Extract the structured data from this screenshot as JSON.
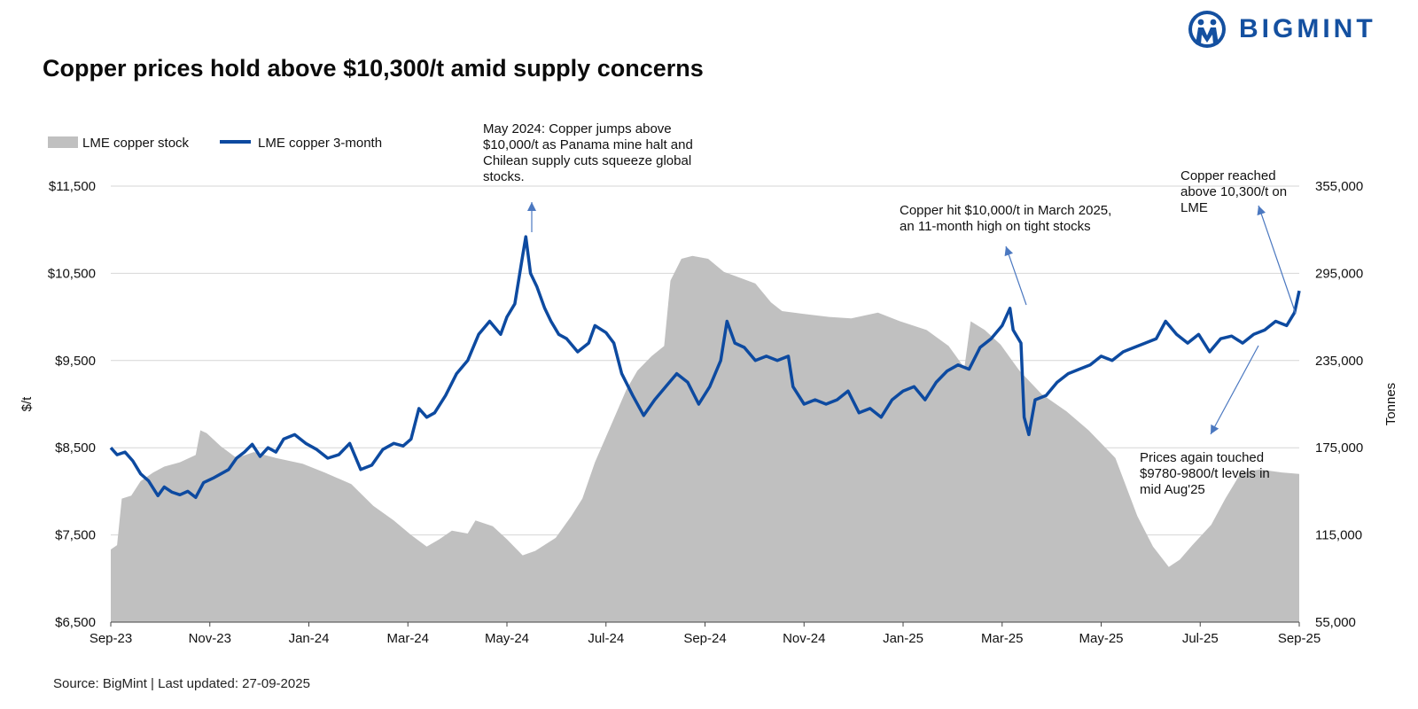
{
  "header": {
    "title": "Copper prices hold above $10,300/t amid supply concerns",
    "logo_text": "BIGMINT"
  },
  "footer": {
    "source": "Source: BigMint | Last updated: 27-09-2025"
  },
  "colors": {
    "price_line": "#0d4aa0",
    "stock_area": "#c0c0c0",
    "brand": "#1450a0"
  },
  "chart_data": {
    "type": "area+line",
    "ylabel": "$/t",
    "y2label": "Tonnes",
    "ylim": [
      6500,
      11500
    ],
    "y2lim": [
      55000,
      355000
    ],
    "y_ticks": [
      "$11,500",
      "$10,500",
      "$9,500",
      "$8,500",
      "$7,500",
      "$6,500"
    ],
    "y2_ticks": [
      "355,000",
      "295,000",
      "235,000",
      "175,000",
      "115,000",
      "55,000"
    ],
    "x_ticks": [
      "Sep-23",
      "Nov-23",
      "Jan-24",
      "Mar-24",
      "May-24",
      "Jul-24",
      "Sep-24",
      "Nov-24",
      "Jan-25",
      "Mar-25",
      "May-25",
      "Jul-25",
      "Sep-25"
    ],
    "grid": true,
    "legend": [
      "LME copper stock",
      "LME copper 3-month"
    ],
    "legend_position": "top-left",
    "series": [
      {
        "name": "LME copper stock",
        "type": "area",
        "axis": "right",
        "points": [
          [
            "2023-09-01",
            105000
          ],
          [
            "2023-09-05",
            108000
          ],
          [
            "2023-09-08",
            140000
          ],
          [
            "2023-09-14",
            142000
          ],
          [
            "2023-09-20",
            152000
          ],
          [
            "2023-09-28",
            158000
          ],
          [
            "2023-10-05",
            162000
          ],
          [
            "2023-10-15",
            165000
          ],
          [
            "2023-10-25",
            170000
          ],
          [
            "2023-10-28",
            187000
          ],
          [
            "2023-11-01",
            185000
          ],
          [
            "2023-11-10",
            176000
          ],
          [
            "2023-11-20",
            168000
          ],
          [
            "2023-12-01",
            172000
          ],
          [
            "2023-12-15",
            168000
          ],
          [
            "2024-01-01",
            164000
          ],
          [
            "2024-01-15",
            158000
          ],
          [
            "2024-02-01",
            150000
          ],
          [
            "2024-02-15",
            135000
          ],
          [
            "2024-02-28",
            125000
          ],
          [
            "2024-03-10",
            115000
          ],
          [
            "2024-03-20",
            107000
          ],
          [
            "2024-03-28",
            112000
          ],
          [
            "2024-04-05",
            118000
          ],
          [
            "2024-04-15",
            116000
          ],
          [
            "2024-04-20",
            125000
          ],
          [
            "2024-05-01",
            121000
          ],
          [
            "2024-05-10",
            112000
          ],
          [
            "2024-05-20",
            101000
          ],
          [
            "2024-05-28",
            104000
          ],
          [
            "2024-06-10",
            113000
          ],
          [
            "2024-06-20",
            128000
          ],
          [
            "2024-06-27",
            140000
          ],
          [
            "2024-07-05",
            165000
          ],
          [
            "2024-07-15",
            190000
          ],
          [
            "2024-07-25",
            215000
          ],
          [
            "2024-08-01",
            228000
          ],
          [
            "2024-08-10",
            238000
          ],
          [
            "2024-08-18",
            245000
          ],
          [
            "2024-08-22",
            290000
          ],
          [
            "2024-08-29",
            305000
          ],
          [
            "2024-09-05",
            307000
          ],
          [
            "2024-09-15",
            305000
          ],
          [
            "2024-09-25",
            296000
          ],
          [
            "2024-10-05",
            292000
          ],
          [
            "2024-10-15",
            288000
          ],
          [
            "2024-10-25",
            275000
          ],
          [
            "2024-11-01",
            269000
          ],
          [
            "2024-11-15",
            267000
          ],
          [
            "2024-12-01",
            265000
          ],
          [
            "2024-12-15",
            264000
          ],
          [
            "2025-01-01",
            268000
          ],
          [
            "2025-01-15",
            262000
          ],
          [
            "2025-02-01",
            256000
          ],
          [
            "2025-02-15",
            245000
          ],
          [
            "2025-02-25",
            230000
          ],
          [
            "2025-03-01",
            262000
          ],
          [
            "2025-03-10",
            256000
          ],
          [
            "2025-03-20",
            246000
          ],
          [
            "2025-04-01",
            228000
          ],
          [
            "2025-04-15",
            212000
          ],
          [
            "2025-05-01",
            200000
          ],
          [
            "2025-05-15",
            187000
          ],
          [
            "2025-06-01",
            168000
          ],
          [
            "2025-06-15",
            128000
          ],
          [
            "2025-06-25",
            107000
          ],
          [
            "2025-07-05",
            93000
          ],
          [
            "2025-07-12",
            98000
          ],
          [
            "2025-07-20",
            108000
          ],
          [
            "2025-08-01",
            122000
          ],
          [
            "2025-08-10",
            140000
          ],
          [
            "2025-08-20",
            158000
          ],
          [
            "2025-09-01",
            160000
          ],
          [
            "2025-09-15",
            158000
          ],
          [
            "2025-09-26",
            157000
          ]
        ]
      },
      {
        "name": "LME copper 3-month",
        "type": "line",
        "axis": "left",
        "points": [
          [
            "2023-09-01",
            8500
          ],
          [
            "2023-09-05",
            8420
          ],
          [
            "2023-09-10",
            8450
          ],
          [
            "2023-09-15",
            8350
          ],
          [
            "2023-09-20",
            8200
          ],
          [
            "2023-09-25",
            8120
          ],
          [
            "2023-10-01",
            7950
          ],
          [
            "2023-10-05",
            8050
          ],
          [
            "2023-10-10",
            7990
          ],
          [
            "2023-10-15",
            7960
          ],
          [
            "2023-10-20",
            8000
          ],
          [
            "2023-10-25",
            7930
          ],
          [
            "2023-10-30",
            8100
          ],
          [
            "2023-11-05",
            8150
          ],
          [
            "2023-11-10",
            8200
          ],
          [
            "2023-11-15",
            8250
          ],
          [
            "2023-11-20",
            8380
          ],
          [
            "2023-11-25",
            8450
          ],
          [
            "2023-11-30",
            8540
          ],
          [
            "2023-12-05",
            8400
          ],
          [
            "2023-12-10",
            8500
          ],
          [
            "2023-12-15",
            8450
          ],
          [
            "2023-12-20",
            8600
          ],
          [
            "2023-12-27",
            8650
          ],
          [
            "2024-01-03",
            8550
          ],
          [
            "2024-01-10",
            8480
          ],
          [
            "2024-01-17",
            8380
          ],
          [
            "2024-01-24",
            8420
          ],
          [
            "2024-01-31",
            8550
          ],
          [
            "2024-02-07",
            8250
          ],
          [
            "2024-02-14",
            8300
          ],
          [
            "2024-02-21",
            8480
          ],
          [
            "2024-02-28",
            8550
          ],
          [
            "2024-03-05",
            8520
          ],
          [
            "2024-03-10",
            8600
          ],
          [
            "2024-03-15",
            8950
          ],
          [
            "2024-03-20",
            8850
          ],
          [
            "2024-03-25",
            8900
          ],
          [
            "2024-04-01",
            9100
          ],
          [
            "2024-04-08",
            9350
          ],
          [
            "2024-04-15",
            9500
          ],
          [
            "2024-04-22",
            9800
          ],
          [
            "2024-04-29",
            9950
          ],
          [
            "2024-05-06",
            9800
          ],
          [
            "2024-05-10",
            10000
          ],
          [
            "2024-05-15",
            10150
          ],
          [
            "2024-05-20",
            10700
          ],
          [
            "2024-05-22",
            10920
          ],
          [
            "2024-05-25",
            10500
          ],
          [
            "2024-05-29",
            10350
          ],
          [
            "2024-06-03",
            10100
          ],
          [
            "2024-06-07",
            9950
          ],
          [
            "2024-06-12",
            9800
          ],
          [
            "2024-06-17",
            9750
          ],
          [
            "2024-06-24",
            9600
          ],
          [
            "2024-07-01",
            9700
          ],
          [
            "2024-07-05",
            9900
          ],
          [
            "2024-07-12",
            9820
          ],
          [
            "2024-07-17",
            9700
          ],
          [
            "2024-07-22",
            9350
          ],
          [
            "2024-07-29",
            9100
          ],
          [
            "2024-08-05",
            8870
          ],
          [
            "2024-08-12",
            9050
          ],
          [
            "2024-08-19",
            9200
          ],
          [
            "2024-08-26",
            9350
          ],
          [
            "2024-09-02",
            9250
          ],
          [
            "2024-09-09",
            9000
          ],
          [
            "2024-09-16",
            9200
          ],
          [
            "2024-09-23",
            9500
          ],
          [
            "2024-09-27",
            9950
          ],
          [
            "2024-10-02",
            9700
          ],
          [
            "2024-10-08",
            9650
          ],
          [
            "2024-10-15",
            9500
          ],
          [
            "2024-10-22",
            9550
          ],
          [
            "2024-10-29",
            9500
          ],
          [
            "2024-11-05",
            9550
          ],
          [
            "2024-11-08",
            9200
          ],
          [
            "2024-11-15",
            9000
          ],
          [
            "2024-11-22",
            9050
          ],
          [
            "2024-11-29",
            9000
          ],
          [
            "2024-12-06",
            9050
          ],
          [
            "2024-12-13",
            9150
          ],
          [
            "2024-12-20",
            8900
          ],
          [
            "2024-12-27",
            8950
          ],
          [
            "2025-01-03",
            8850
          ],
          [
            "2025-01-10",
            9050
          ],
          [
            "2025-01-17",
            9150
          ],
          [
            "2025-01-24",
            9200
          ],
          [
            "2025-01-31",
            9050
          ],
          [
            "2025-02-07",
            9250
          ],
          [
            "2025-02-14",
            9380
          ],
          [
            "2025-02-21",
            9450
          ],
          [
            "2025-02-28",
            9400
          ],
          [
            "2025-03-07",
            9650
          ],
          [
            "2025-03-14",
            9750
          ],
          [
            "2025-03-21",
            9900
          ],
          [
            "2025-03-26",
            10100
          ],
          [
            "2025-03-28",
            9850
          ],
          [
            "2025-04-02",
            9700
          ],
          [
            "2025-04-04",
            8850
          ],
          [
            "2025-04-07",
            8650
          ],
          [
            "2025-04-11",
            9050
          ],
          [
            "2025-04-18",
            9100
          ],
          [
            "2025-04-25",
            9250
          ],
          [
            "2025-05-02",
            9350
          ],
          [
            "2025-05-09",
            9400
          ],
          [
            "2025-05-16",
            9450
          ],
          [
            "2025-05-23",
            9550
          ],
          [
            "2025-05-30",
            9500
          ],
          [
            "2025-06-06",
            9600
          ],
          [
            "2025-06-13",
            9650
          ],
          [
            "2025-06-20",
            9700
          ],
          [
            "2025-06-27",
            9750
          ],
          [
            "2025-07-03",
            9950
          ],
          [
            "2025-07-10",
            9800
          ],
          [
            "2025-07-17",
            9700
          ],
          [
            "2025-07-24",
            9800
          ],
          [
            "2025-07-31",
            9600
          ],
          [
            "2025-08-07",
            9750
          ],
          [
            "2025-08-14",
            9780
          ],
          [
            "2025-08-21",
            9700
          ],
          [
            "2025-08-28",
            9800
          ],
          [
            "2025-09-04",
            9850
          ],
          [
            "2025-09-11",
            9950
          ],
          [
            "2025-09-18",
            9900
          ],
          [
            "2025-09-23",
            10050
          ],
          [
            "2025-09-26",
            10300
          ]
        ]
      }
    ],
    "annotations": [
      {
        "lines": [
          "May 2024: Copper jumps above",
          "$10,000/t as Panama mine halt and",
          "Chilean supply cuts squeeze global",
          "stocks."
        ],
        "target": [
          "2024-05-22",
          10920
        ]
      },
      {
        "lines": [
          "Copper hit $10,000/t in March 2025,",
          "an 11-month high on tight stocks"
        ],
        "target": [
          "2025-03-26",
          10100
        ]
      },
      {
        "lines": [
          "Copper reached",
          "above 10,300/t on",
          "LME"
        ],
        "target": [
          "2025-09-26",
          10300
        ]
      },
      {
        "lines": [
          "Prices again touched",
          "$9780-9800/t levels in",
          "mid Aug'25"
        ],
        "target": [
          "2025-08-14",
          9780
        ]
      }
    ]
  }
}
